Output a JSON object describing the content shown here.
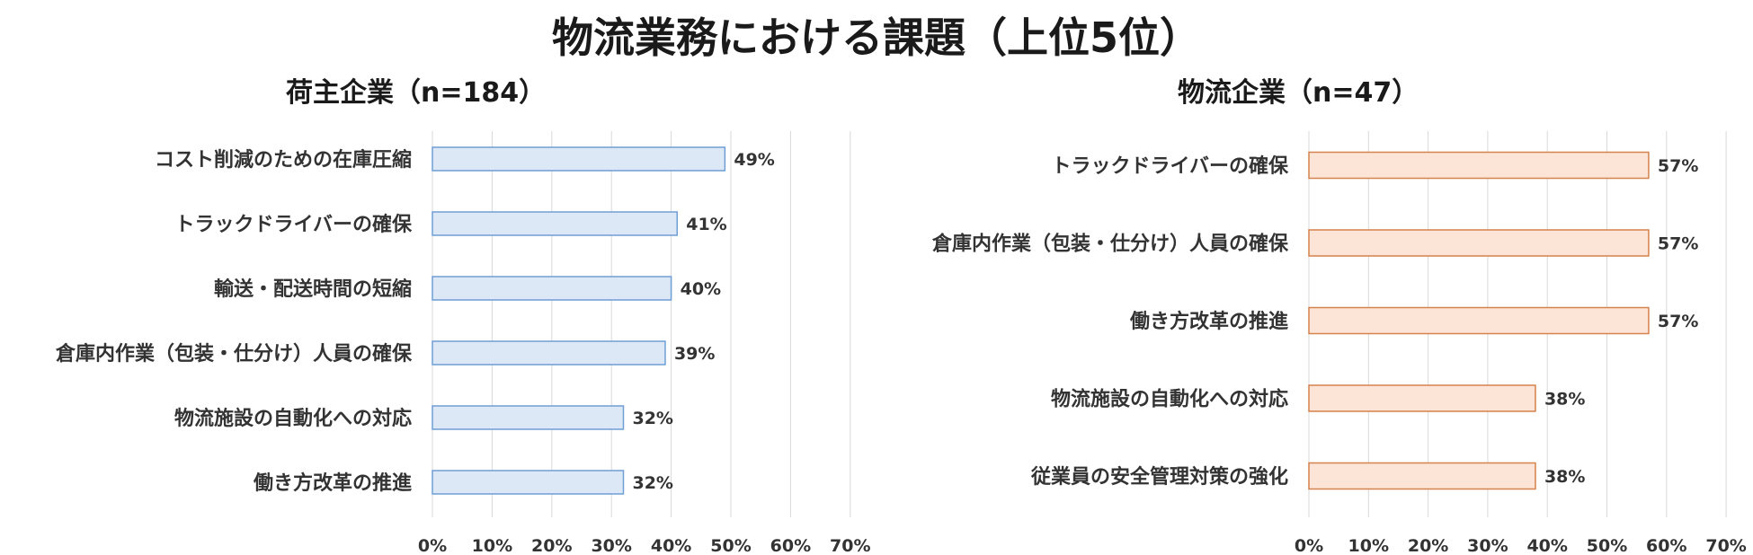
{
  "title": "物流業務における課題（上位5位）",
  "chart_data": [
    {
      "type": "bar",
      "orientation": "horizontal",
      "title": "荷主企業（n=184）",
      "categories": [
        "コスト削減のための在庫圧縮",
        "トラックドライバーの確保",
        "輸送・配送時間の短縮",
        "倉庫内作業（包装・仕分け）人員の確保",
        "物流施設の自動化への対応",
        "働き方改革の推進"
      ],
      "values": [
        49,
        41,
        40,
        39,
        32,
        32
      ],
      "value_labels": [
        "49%",
        "41%",
        "40%",
        "39%",
        "32%",
        "32%"
      ],
      "xlim": [
        0,
        70
      ],
      "xticks": [
        "0%",
        "10%",
        "20%",
        "30%",
        "40%",
        "50%",
        "60%",
        "70%"
      ],
      "grid": true,
      "bar_fill": "#dde8f6",
      "bar_stroke": "#6f9fd4"
    },
    {
      "type": "bar",
      "orientation": "horizontal",
      "title": "物流企業（n=47）",
      "categories": [
        "トラックドライバーの確保",
        "倉庫内作業（包装・仕分け）人員の確保",
        "働き方改革の推進",
        "物流施設の自動化への対応",
        "従業員の安全管理対策の強化"
      ],
      "values": [
        57,
        57,
        57,
        38,
        38
      ],
      "value_labels": [
        "57%",
        "57%",
        "57%",
        "38%",
        "38%"
      ],
      "xlim": [
        0,
        70
      ],
      "xticks": [
        "0%",
        "10%",
        "20%",
        "30%",
        "40%",
        "50%",
        "60%",
        "70%"
      ],
      "grid": true,
      "bar_fill": "#fce4d6",
      "bar_stroke": "#d5824d"
    }
  ]
}
